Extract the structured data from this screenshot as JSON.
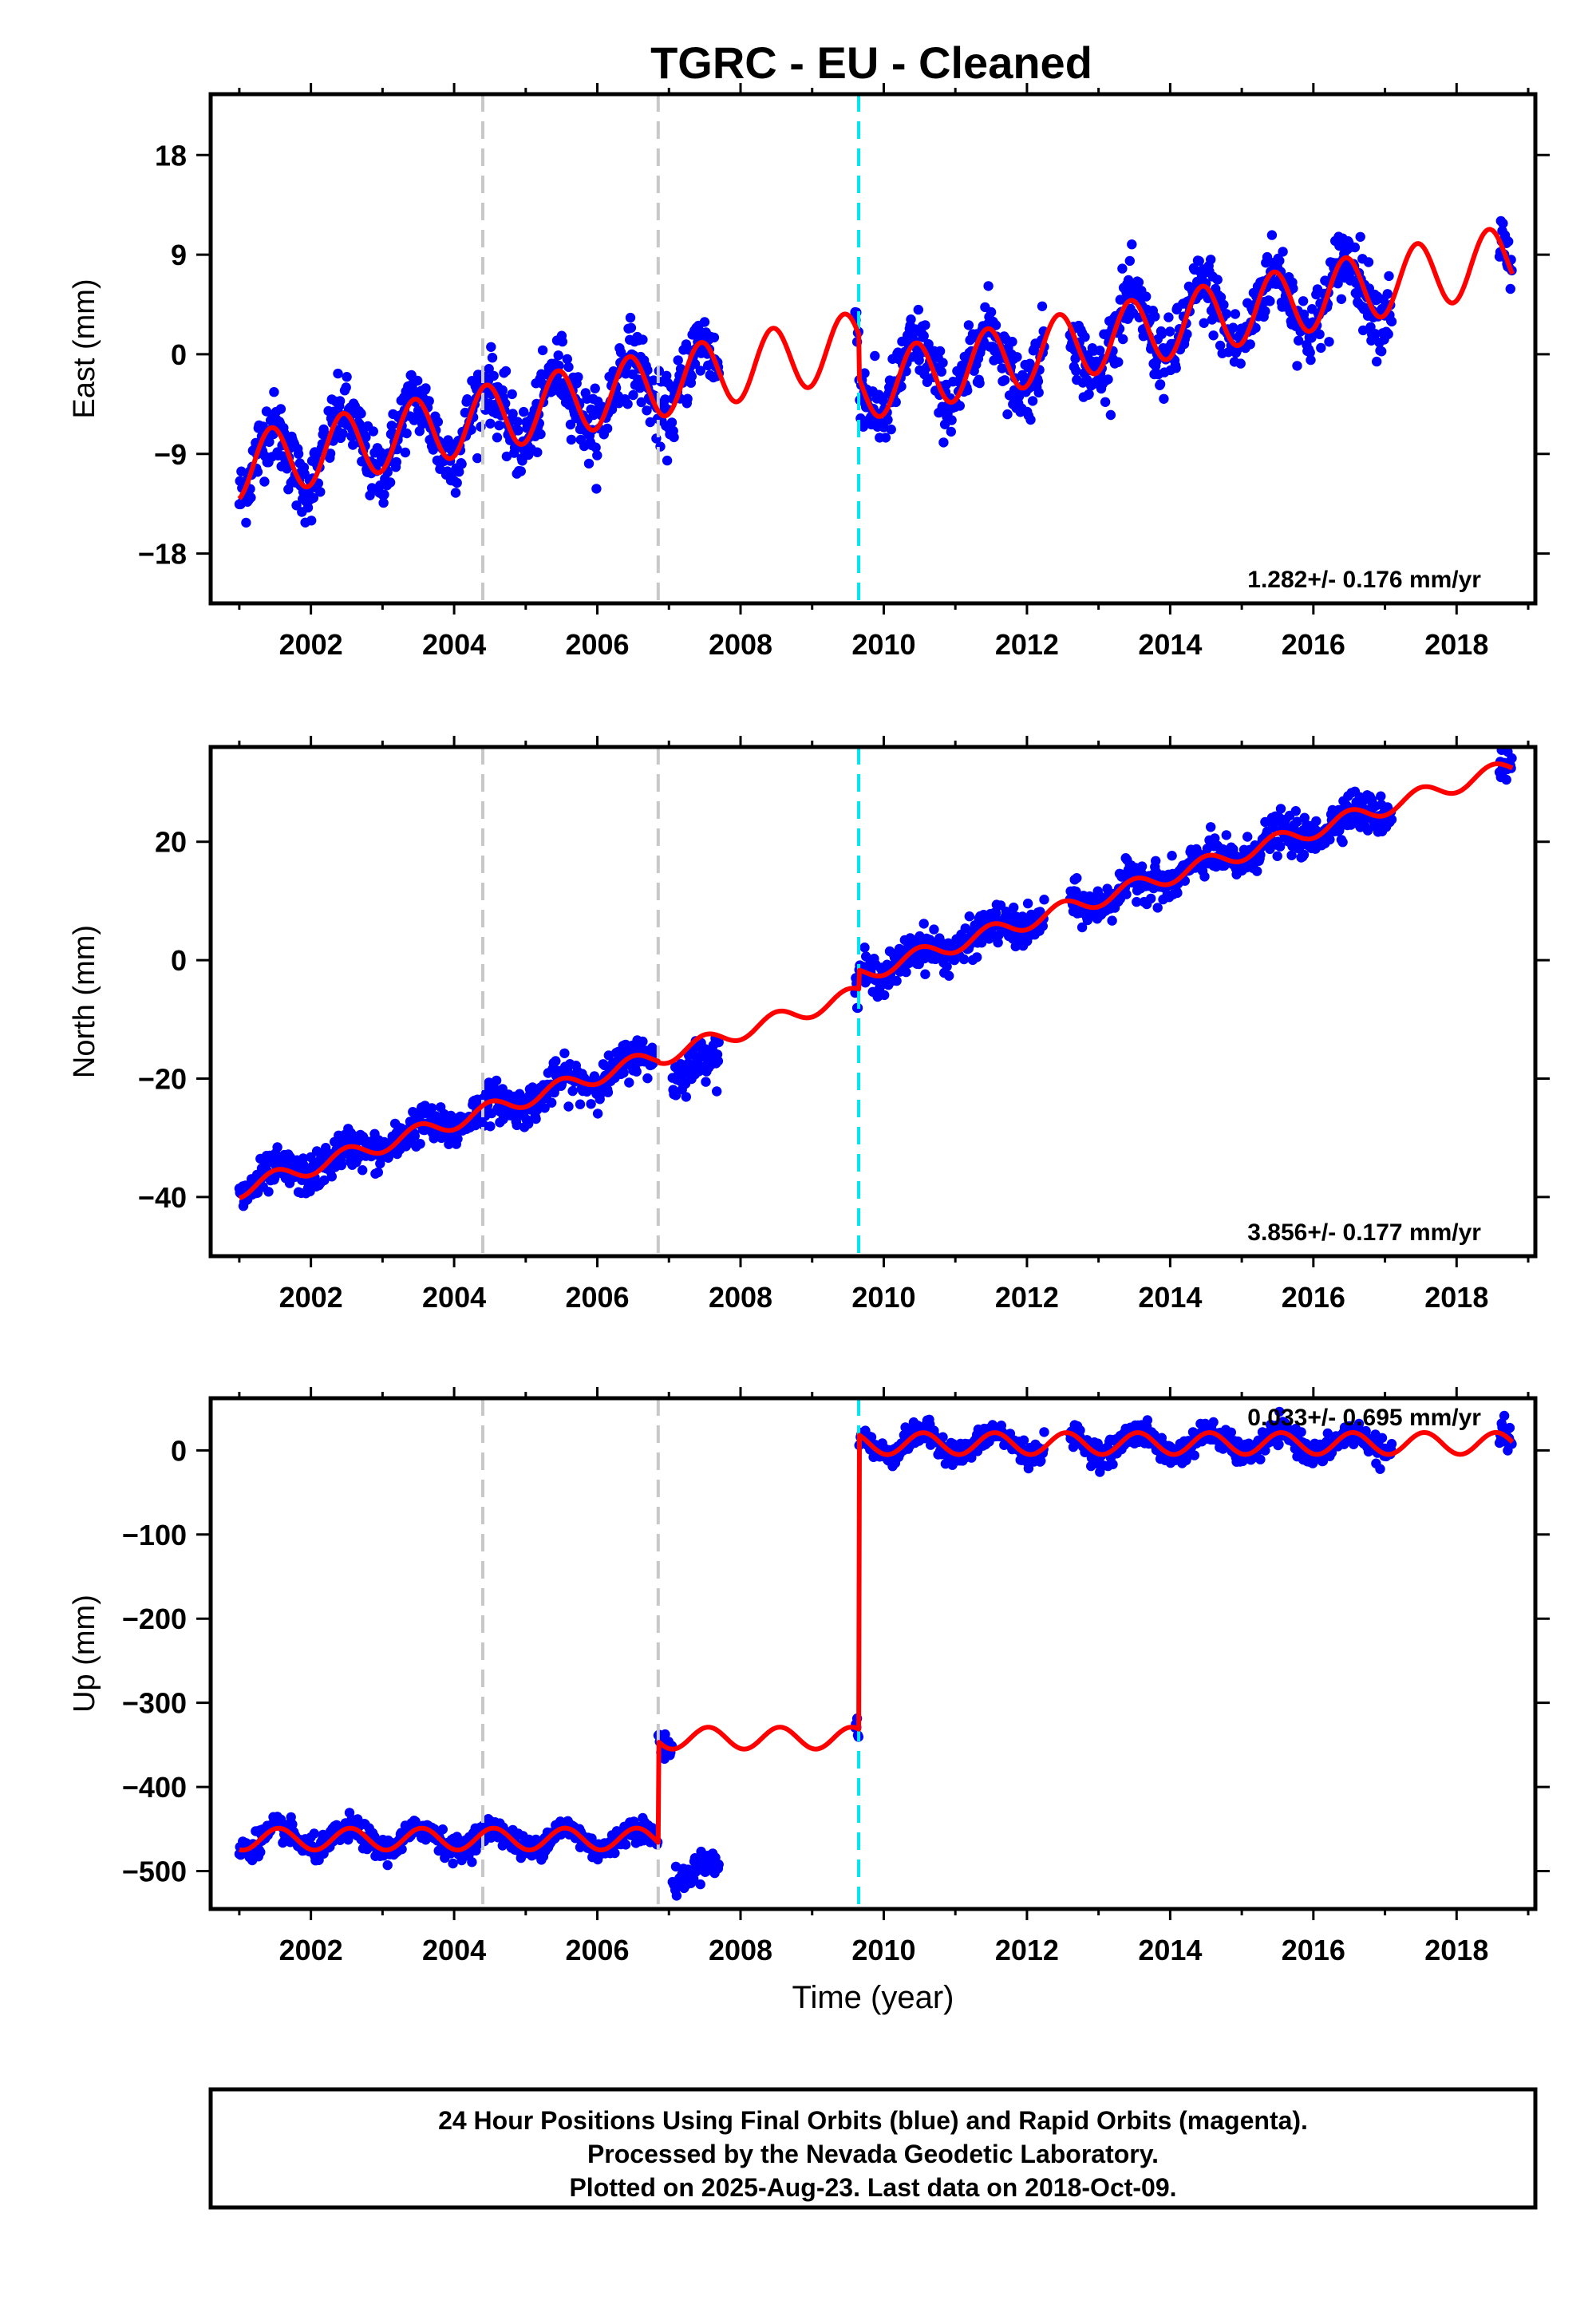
{
  "title": "TGRC  - EU - Cleaned",
  "colors": {
    "data_points": "#0000ff",
    "model_fit": "#ff0000",
    "offset_equipment": "#c8c8c8",
    "offset_earthquake": "#00e5ee",
    "frame": "#000000"
  },
  "chart_data": [
    {
      "type": "scatter",
      "id": "east",
      "ylabel": "East (mm)",
      "xlabel": "",
      "xlim": [
        2000.6,
        2019.1
      ],
      "ylim": [
        -22.5,
        23.5
      ],
      "yticks": [
        18,
        9,
        0,
        -9,
        -18
      ],
      "ytick_labels": [
        "18",
        "9",
        "0",
        "−9",
        "−18"
      ],
      "xticks": [
        2002,
        2004,
        2006,
        2008,
        2010,
        2012,
        2014,
        2016,
        2018
      ],
      "xtick_labels": [
        "2002",
        "2004",
        "2006",
        "2008",
        "2010",
        "2012",
        "2014",
        "2016",
        "2018"
      ],
      "rate_label": "1.282+/- 0.176 mm/yr",
      "offset_lines": [
        {
          "x": 2004.4,
          "kind": "equipment"
        },
        {
          "x": 2006.85,
          "kind": "equipment"
        },
        {
          "x": 2009.65,
          "kind": "earthquake"
        }
      ],
      "data_segments": [
        {
          "start": 2001.0,
          "end": 2007.7
        },
        {
          "start": 2009.6,
          "end": 2012.25
        },
        {
          "start": 2012.6,
          "end": 2017.1
        },
        {
          "start": 2018.6,
          "end": 2018.78
        }
      ],
      "model": {
        "epochs": [
          2001.0,
          2009.65
        ],
        "intercepts": [
          -10.2,
          -3.0
        ],
        "rate": 1.282,
        "annual_amplitude": 3.0,
        "annual_peak": 0.45,
        "scatter_sd": 1.6
      }
    },
    {
      "type": "scatter",
      "id": "north",
      "ylabel": "North (mm)",
      "xlabel": "",
      "xlim": [
        2000.6,
        2019.1
      ],
      "ylim": [
        -50,
        36
      ],
      "yticks": [
        20,
        0,
        -20,
        -40
      ],
      "ytick_labels": [
        "20",
        "0",
        "−20",
        "−40"
      ],
      "xticks": [
        2002,
        2004,
        2006,
        2008,
        2010,
        2012,
        2014,
        2016,
        2018
      ],
      "xtick_labels": [
        "2002",
        "2004",
        "2006",
        "2008",
        "2010",
        "2012",
        "2014",
        "2016",
        "2018"
      ],
      "rate_label": "3.856+/- 0.177 mm/yr",
      "offset_lines": [
        {
          "x": 2004.4,
          "kind": "equipment"
        },
        {
          "x": 2006.85,
          "kind": "equipment"
        },
        {
          "x": 2009.65,
          "kind": "earthquake"
        }
      ],
      "data_segments": [
        {
          "start": 2001.0,
          "end": 2006.8
        },
        {
          "start": 2007.05,
          "end": 2007.7,
          "offset": -3.5
        },
        {
          "start": 2009.6,
          "end": 2012.25
        },
        {
          "start": 2012.6,
          "end": 2017.1
        },
        {
          "start": 2018.6,
          "end": 2018.78
        }
      ],
      "model": {
        "epochs": [
          2001.0,
          2006.85,
          2009.65
        ],
        "intercepts": [
          -38.8,
          -16.5,
          -2.5
        ],
        "rate": 3.856,
        "annual_amplitude": 1.4,
        "annual_peak": 0.5,
        "scatter_sd": 1.6
      }
    },
    {
      "type": "scatter",
      "id": "up",
      "ylabel": "Up (mm)",
      "xlabel": "Time (year)",
      "xlim": [
        2000.6,
        2019.1
      ],
      "ylim": [
        -545,
        62
      ],
      "yticks": [
        0,
        -100,
        -200,
        -300,
        -400,
        -500
      ],
      "ytick_labels": [
        "0",
        "−100",
        "−200",
        "−300",
        "−400",
        "−500"
      ],
      "xticks": [
        2002,
        2004,
        2006,
        2008,
        2010,
        2012,
        2014,
        2016,
        2018
      ],
      "xtick_labels": [
        "2002",
        "2004",
        "2006",
        "2008",
        "2010",
        "2012",
        "2014",
        "2016",
        "2018"
      ],
      "rate_label": "0.033+/- 0.695 mm/yr",
      "offset_lines": [
        {
          "x": 2004.4,
          "kind": "equipment"
        },
        {
          "x": 2006.85,
          "kind": "equipment"
        },
        {
          "x": 2009.65,
          "kind": "earthquake"
        }
      ],
      "data_segments": [
        {
          "start": 2001.0,
          "end": 2007.05
        },
        {
          "start": 2007.05,
          "end": 2007.7,
          "offset": -160
        },
        {
          "start": 2009.6,
          "end": 2012.25
        },
        {
          "start": 2012.6,
          "end": 2017.1
        },
        {
          "start": 2018.6,
          "end": 2018.78
        }
      ],
      "model": {
        "epochs": [
          2001.0,
          2006.85,
          2009.65
        ],
        "intercepts": [
          -462,
          -342,
          8
        ],
        "rate": 0.033,
        "annual_amplitude": 13,
        "annual_peak": 0.55,
        "scatter_sd": 7
      }
    }
  ],
  "footer": {
    "line1": "24 Hour Positions Using Final Orbits (blue) and Rapid Orbits (magenta).",
    "line2": "Processed by the Nevada Geodetic Laboratory.",
    "line3": "Plotted on 2025-Aug-23. Last data on 2018-Oct-09."
  }
}
